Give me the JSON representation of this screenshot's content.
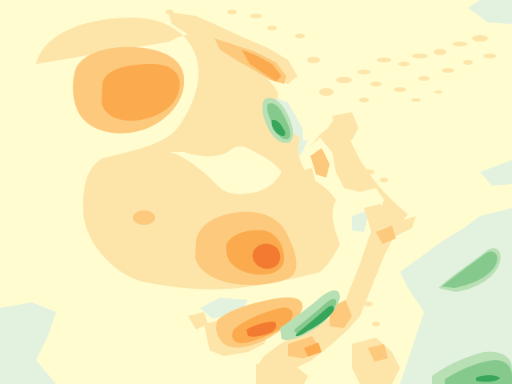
{
  "map": {
    "type": "filled-contour-anomaly-map",
    "labels_shown": false,
    "palette": {
      "background": "#fffccf",
      "pale_orange": "#fde5a9",
      "light_orange": "#fcc97d",
      "orange": "#fbab4e",
      "dark_orange": "#f37b31",
      "pale_green": "#e3f2df",
      "light_green": "#b8e0b4",
      "green": "#86c98d",
      "dark_green": "#37a65a"
    }
  }
}
